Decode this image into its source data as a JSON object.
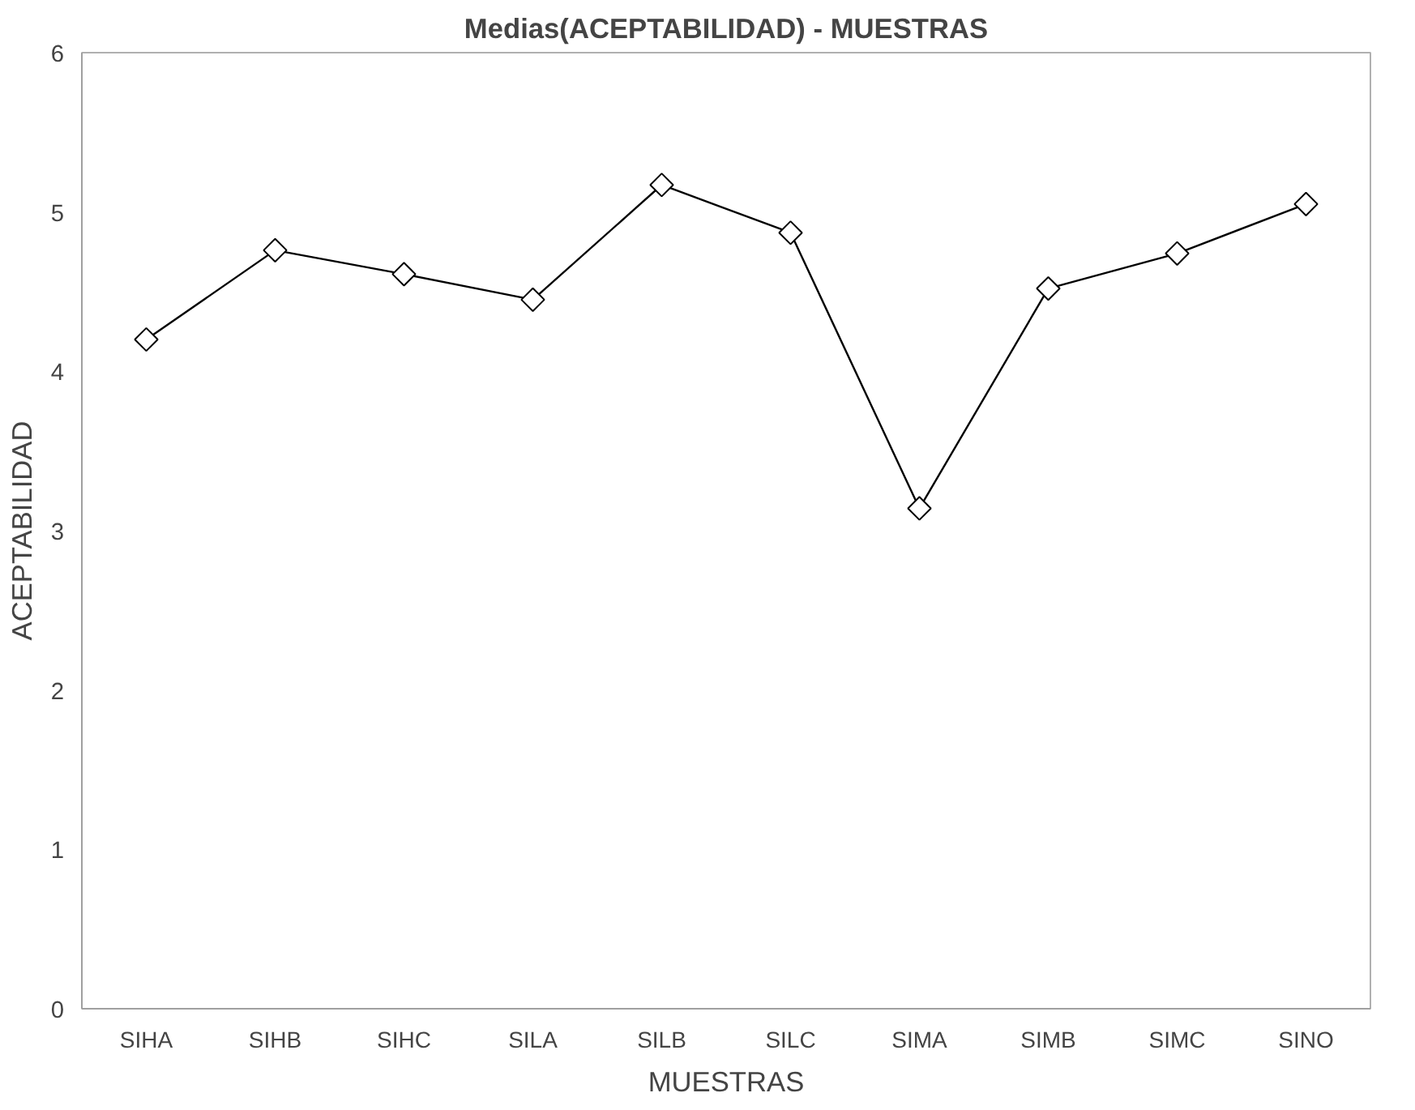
{
  "chart_data": {
    "type": "line",
    "title": "Medias(ACEPTABILIDAD) - MUESTRAS",
    "xlabel": "MUESTRAS",
    "ylabel": "ACEPTABILIDAD",
    "categories": [
      "SIHA",
      "SIHB",
      "SIHC",
      "SILA",
      "SILB",
      "SILC",
      "SIMA",
      "SIMB",
      "SIMC",
      "SINO"
    ],
    "series": [
      {
        "color": "#000000",
        "values": [
          4.2,
          4.76,
          4.61,
          4.45,
          5.17,
          4.87,
          3.14,
          4.52,
          4.74,
          5.05
        ]
      }
    ],
    "ylim": [
      0,
      6
    ],
    "yticks": [
      0,
      1,
      2,
      3,
      4,
      5,
      6
    ],
    "grid": false,
    "marker": "diamond",
    "line_style": "solid"
  }
}
